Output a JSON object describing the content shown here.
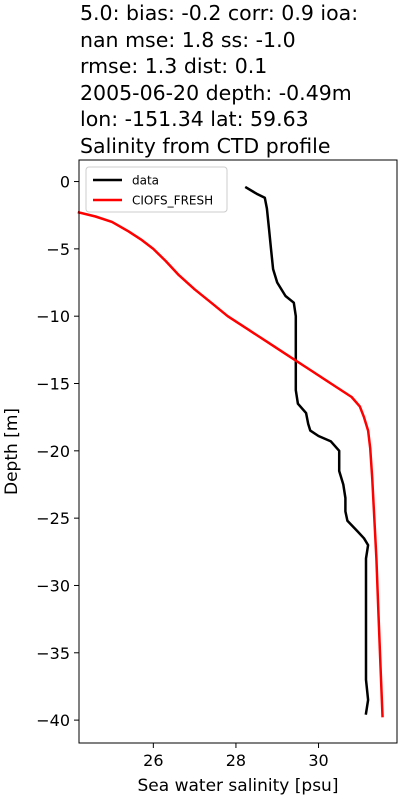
{
  "title_lines": [
    "5.0: bias: -0.2  corr: 0.9  ioa:",
    "nan  mse: 1.8  ss: -1.0",
    "rmse: 1.3  dist: 0.1",
    "2005-06-20 depth: -0.49m",
    "lon: -151.34 lat: 59.63",
    "Salinity from CTD profile"
  ],
  "chart_data": {
    "type": "line",
    "xlabel": "Sea water salinity [psu]",
    "ylabel": "Depth [m]",
    "xlim": [
      24.2,
      31.9
    ],
    "ylim": [
      -41.7,
      1.6
    ],
    "xticks": [
      26,
      28,
      30
    ],
    "yticks": [
      0,
      -5,
      -10,
      -15,
      -20,
      -25,
      -30,
      -35,
      -40
    ],
    "grid": false,
    "legend_position": "upper left",
    "series": [
      {
        "name": "data",
        "color": "#000000",
        "points": [
          [
            28.25,
            -0.45
          ],
          [
            28.5,
            -0.9
          ],
          [
            28.7,
            -1.2
          ],
          [
            28.75,
            -2.0
          ],
          [
            28.8,
            -3.5
          ],
          [
            28.85,
            -5.0
          ],
          [
            28.9,
            -6.5
          ],
          [
            29.0,
            -7.5
          ],
          [
            29.2,
            -8.5
          ],
          [
            29.4,
            -9.0
          ],
          [
            29.45,
            -10.0
          ],
          [
            29.45,
            -11.5
          ],
          [
            29.45,
            -12.5
          ],
          [
            29.45,
            -14.0
          ],
          [
            29.45,
            -15.5
          ],
          [
            29.5,
            -16.5
          ],
          [
            29.7,
            -17.2
          ],
          [
            29.75,
            -18.0
          ],
          [
            29.8,
            -18.5
          ],
          [
            30.0,
            -18.9
          ],
          [
            30.3,
            -19.3
          ],
          [
            30.5,
            -20.0
          ],
          [
            30.5,
            -21.5
          ],
          [
            30.6,
            -22.5
          ],
          [
            30.65,
            -23.5
          ],
          [
            30.65,
            -24.5
          ],
          [
            30.7,
            -25.2
          ],
          [
            30.95,
            -26.0
          ],
          [
            31.1,
            -26.5
          ],
          [
            31.2,
            -27.0
          ],
          [
            31.15,
            -28.0
          ],
          [
            31.15,
            -30.0
          ],
          [
            31.15,
            -33.0
          ],
          [
            31.15,
            -35.0
          ],
          [
            31.15,
            -37.0
          ],
          [
            31.2,
            -38.5
          ],
          [
            31.15,
            -39.5
          ]
        ]
      },
      {
        "name": "CIOFS_FRESH",
        "color": "#ff0000",
        "points": [
          [
            24.2,
            -2.3
          ],
          [
            24.6,
            -2.6
          ],
          [
            25.0,
            -3.0
          ],
          [
            25.4,
            -3.7
          ],
          [
            25.7,
            -4.3
          ],
          [
            26.0,
            -5.0
          ],
          [
            26.3,
            -5.9
          ],
          [
            26.6,
            -6.9
          ],
          [
            27.0,
            -8.0
          ],
          [
            27.4,
            -9.0
          ],
          [
            27.8,
            -10.0
          ],
          [
            28.3,
            -11.0
          ],
          [
            28.8,
            -12.0
          ],
          [
            29.3,
            -13.0
          ],
          [
            29.8,
            -14.0
          ],
          [
            30.3,
            -15.0
          ],
          [
            30.8,
            -16.0
          ],
          [
            31.0,
            -16.7
          ],
          [
            31.1,
            -17.5
          ],
          [
            31.2,
            -18.5
          ],
          [
            31.25,
            -19.8
          ],
          [
            31.3,
            -22.0
          ],
          [
            31.35,
            -25.0
          ],
          [
            31.4,
            -28.0
          ],
          [
            31.45,
            -32.0
          ],
          [
            31.5,
            -36.0
          ],
          [
            31.55,
            -39.7
          ]
        ]
      }
    ]
  }
}
